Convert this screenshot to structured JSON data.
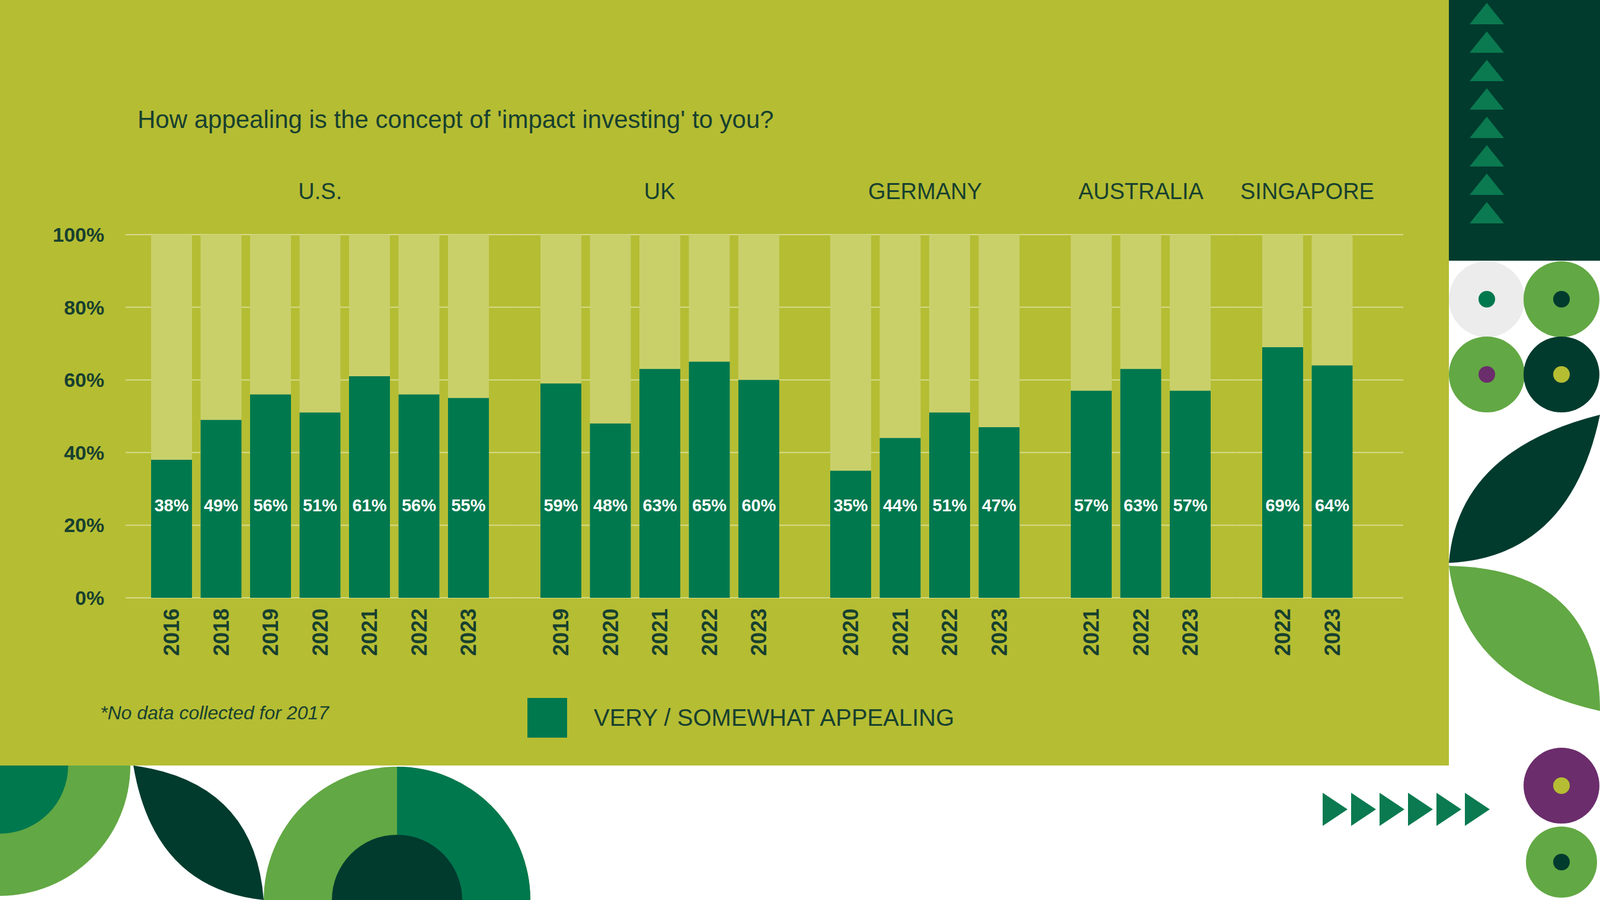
{
  "title": "How appealing is the concept of 'impact investing' to you?",
  "note": "*No data collected for 2017",
  "chart_data": [
    {
      "type": "bar",
      "title": "U.S.",
      "categories": [
        "2016",
        "2018",
        "2019",
        "2020",
        "2021",
        "2022",
        "2023"
      ],
      "series": [
        {
          "name": "VERY / SOMEWHAT APPEALING",
          "color": "#00784e",
          "values": [
            38,
            49,
            56,
            51,
            61,
            56,
            55
          ],
          "value_labels": [
            "38%",
            "49%",
            "56%",
            "51%",
            "61%",
            "56%",
            "55%"
          ]
        }
      ],
      "ylim": [
        0,
        100
      ],
      "yticks": [
        {
          "value": 0,
          "label": "0%"
        },
        {
          "value": 20,
          "label": "20%"
        },
        {
          "value": 40,
          "label": "40%"
        },
        {
          "value": 60,
          "label": "60%"
        },
        {
          "value": 80,
          "label": "80%"
        },
        {
          "value": 100,
          "label": "100%"
        }
      ],
      "grid": true,
      "data_labels": true,
      "legend": "bottom"
    },
    {
      "type": "bar",
      "title": "UK",
      "categories": [
        "2019",
        "2020",
        "2021",
        "2022",
        "2023"
      ],
      "series": [
        {
          "name": "VERY / SOMEWHAT APPEALING",
          "color": "#00784e",
          "values": [
            59,
            48,
            63,
            65,
            60
          ],
          "value_labels": [
            "59%",
            "48%",
            "63%",
            "65%",
            "60%"
          ]
        }
      ],
      "ylim": [
        0,
        100
      ],
      "yticks": [
        {
          "value": 0,
          "label": "0%"
        },
        {
          "value": 20,
          "label": "20%"
        },
        {
          "value": 40,
          "label": "40%"
        },
        {
          "value": 60,
          "label": "60%"
        },
        {
          "value": 80,
          "label": "80%"
        },
        {
          "value": 100,
          "label": "100%"
        }
      ],
      "grid": true,
      "data_labels": true
    },
    {
      "type": "bar",
      "title": "GERMANY",
      "categories": [
        "2020",
        "2021",
        "2022",
        "2023"
      ],
      "series": [
        {
          "name": "VERY / SOMEWHAT APPEALING",
          "color": "#00784e",
          "values": [
            35,
            44,
            51,
            47
          ],
          "value_labels": [
            "35%",
            "44%",
            "51%",
            "47%"
          ]
        }
      ],
      "ylim": [
        0,
        100
      ],
      "yticks": [
        {
          "value": 0,
          "label": "0%"
        },
        {
          "value": 20,
          "label": "20%"
        },
        {
          "value": 40,
          "label": "40%"
        },
        {
          "value": 60,
          "label": "60%"
        },
        {
          "value": 80,
          "label": "80%"
        },
        {
          "value": 100,
          "label": "100%"
        }
      ],
      "grid": true,
      "data_labels": true
    },
    {
      "type": "bar",
      "title": "AUSTRALIA",
      "categories": [
        "2021",
        "2022",
        "2023"
      ],
      "series": [
        {
          "name": "VERY / SOMEWHAT APPEALING",
          "color": "#00784e",
          "values": [
            57,
            63,
            57
          ],
          "value_labels": [
            "57%",
            "63%",
            "57%"
          ]
        }
      ],
      "ylim": [
        0,
        100
      ],
      "yticks": [
        {
          "value": 0,
          "label": "0%"
        },
        {
          "value": 20,
          "label": "20%"
        },
        {
          "value": 40,
          "label": "40%"
        },
        {
          "value": 60,
          "label": "60%"
        },
        {
          "value": 80,
          "label": "80%"
        },
        {
          "value": 100,
          "label": "100%"
        }
      ],
      "grid": true,
      "data_labels": true
    },
    {
      "type": "bar",
      "title": "SINGAPORE",
      "categories": [
        "2022",
        "2023"
      ],
      "series": [
        {
          "name": "VERY / SOMEWHAT APPEALING",
          "color": "#00784e",
          "values": [
            69,
            64
          ],
          "value_labels": [
            "69%",
            "64%"
          ]
        }
      ],
      "ylim": [
        0,
        100
      ],
      "yticks": [
        {
          "value": 0,
          "label": "0%"
        },
        {
          "value": 20,
          "label": "20%"
        },
        {
          "value": 40,
          "label": "40%"
        },
        {
          "value": 60,
          "label": "60%"
        },
        {
          "value": 80,
          "label": "80%"
        },
        {
          "value": 100,
          "label": "100%"
        }
      ],
      "grid": true,
      "data_labels": true
    }
  ]
}
